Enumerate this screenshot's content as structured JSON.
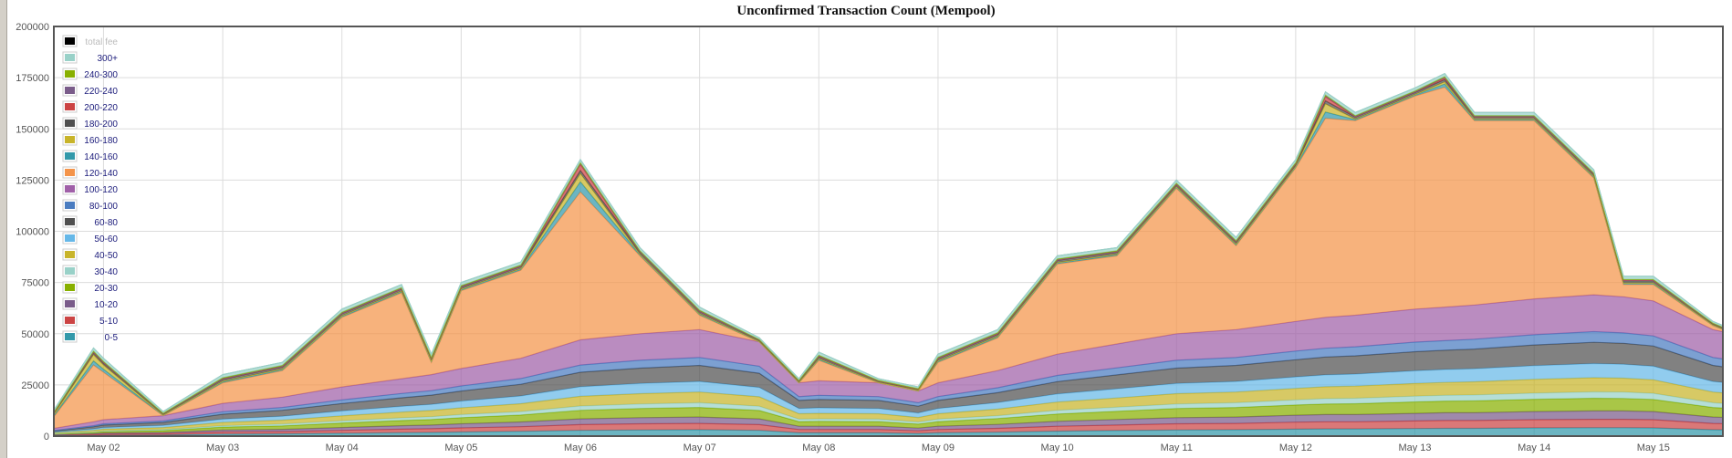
{
  "chart_data": {
    "type": "area",
    "stacked": true,
    "title": "Unconfirmed Transaction Count (Mempool)",
    "xlabel": "",
    "ylabel": "",
    "ylim": [
      0,
      200000
    ],
    "yticks": [
      0,
      25000,
      50000,
      75000,
      100000,
      125000,
      150000,
      175000,
      200000
    ],
    "xlim": [
      "May 01 14:00",
      "May 15 14:00"
    ],
    "xtick_labels": [
      "May 02",
      "May 03",
      "May 04",
      "May 05",
      "May 06",
      "May 07",
      "May 08",
      "May 09",
      "May 10",
      "May 11",
      "May 12",
      "May 13",
      "May 14",
      "May 15"
    ],
    "grid": true,
    "legend_placement": "top-left",
    "x": [
      "May 01 12:00",
      "May 01 22:00",
      "May 02 00:00",
      "May 02 12:00",
      "May 03 00:00",
      "May 03 12:00",
      "May 04 00:00",
      "May 04 12:00",
      "May 04 18:00",
      "May 05 00:00",
      "May 05 12:00",
      "May 06 00:00",
      "May 06 12:00",
      "May 07 00:00",
      "May 07 12:00",
      "May 07 20:00",
      "May 08 00:00",
      "May 08 12:00",
      "May 08 20:00",
      "May 09 00:00",
      "May 09 12:00",
      "May 10 00:00",
      "May 10 12:00",
      "May 11 00:00",
      "May 11 12:00",
      "May 12 00:00",
      "May 12 06:00",
      "May 12 12:00",
      "May 13 00:00",
      "May 13 06:00",
      "May 13 12:00",
      "May 14 00:00",
      "May 14 12:00",
      "May 14 18:00",
      "May 15 00:00",
      "May 15 12:00",
      "May 15 16:00"
    ],
    "series": [
      {
        "name": "0-5",
        "color": "#3399aa",
        "values": [
          200,
          400,
          500,
          600,
          1000,
          1100,
          1400,
          1700,
          1800,
          2000,
          2300,
          2800,
          3000,
          3100,
          2800,
          1600,
          1600,
          1600,
          1300,
          1600,
          1900,
          2400,
          2700,
          3000,
          3100,
          3400,
          3500,
          3500,
          3700,
          3800,
          3800,
          4000,
          4100,
          4100,
          4000,
          3100,
          3000
        ]
      },
      {
        "name": "5-10",
        "color": "#cc4444",
        "values": [
          200,
          400,
          500,
          600,
          1000,
          1100,
          1400,
          1700,
          1800,
          2000,
          2300,
          2800,
          3000,
          3100,
          2800,
          1600,
          1600,
          1600,
          1300,
          1600,
          1900,
          2400,
          2700,
          3000,
          3100,
          3400,
          3500,
          3500,
          3700,
          3800,
          3800,
          4000,
          4100,
          4100,
          4000,
          3100,
          3000
        ]
      },
      {
        "name": "10-20",
        "color": "#7a5c8a",
        "values": [
          200,
          400,
          500,
          600,
          1000,
          1100,
          1400,
          1700,
          1800,
          2000,
          2300,
          2800,
          3000,
          3100,
          2800,
          1600,
          1600,
          1600,
          1300,
          1600,
          1900,
          2400,
          2700,
          3000,
          3100,
          3400,
          3500,
          3500,
          3700,
          3800,
          3800,
          4000,
          4100,
          4100,
          4000,
          3100,
          3000
        ]
      },
      {
        "name": "20-30",
        "color": "#88b000",
        "values": [
          300,
          600,
          700,
          900,
          1400,
          1700,
          2200,
          2500,
          2700,
          3000,
          3400,
          4200,
          4500,
          4700,
          4100,
          2300,
          2400,
          2300,
          2000,
          2300,
          2900,
          3600,
          4000,
          4500,
          4700,
          5000,
          5200,
          5300,
          5600,
          5700,
          5800,
          6000,
          6200,
          6100,
          5900,
          4700,
          4500
        ]
      },
      {
        "name": "30-40",
        "color": "#99d1c8",
        "values": [
          100,
          300,
          400,
          500,
          700,
          900,
          1100,
          1300,
          1400,
          1500,
          1700,
          2100,
          2200,
          2300,
          2100,
          1200,
          1200,
          1200,
          1000,
          1200,
          1400,
          1800,
          2000,
          2200,
          2300,
          2500,
          2600,
          2700,
          2800,
          2800,
          2900,
          3000,
          3100,
          3100,
          3000,
          2300,
          2200
        ]
      },
      {
        "name": "40-50",
        "color": "#c8b42a",
        "values": [
          300,
          700,
          800,
          1000,
          1600,
          1900,
          2400,
          2800,
          3000,
          3300,
          3800,
          4700,
          5000,
          5200,
          4600,
          2600,
          2700,
          2600,
          2200,
          2600,
          3200,
          4000,
          4500,
          5000,
          5200,
          5600,
          5800,
          5900,
          6200,
          6300,
          6400,
          6700,
          6900,
          6800,
          6600,
          5200,
          5000
        ]
      },
      {
        "name": "50-60",
        "color": "#66b8e8",
        "values": [
          300,
          700,
          800,
          1000,
          1600,
          1900,
          2400,
          2800,
          3000,
          3300,
          3800,
          4700,
          5000,
          5200,
          4600,
          2600,
          2700,
          2600,
          2200,
          2600,
          3200,
          4000,
          4500,
          5000,
          5200,
          5600,
          5800,
          5900,
          6200,
          6300,
          6400,
          6700,
          6900,
          6800,
          6600,
          5200,
          5000
        ]
      },
      {
        "name": "60-80",
        "color": "#505050",
        "values": [
          400,
          1100,
          1200,
          1500,
          2400,
          2900,
          3600,
          4200,
          4500,
          4900,
          5700,
          7100,
          7500,
          7800,
          6900,
          3900,
          4100,
          3900,
          3300,
          3900,
          4800,
          6000,
          6800,
          7500,
          7800,
          8400,
          8700,
          8900,
          9300,
          9400,
          9600,
          10100,
          10400,
          10200,
          9900,
          7800,
          7500
        ]
      },
      {
        "name": "80-100",
        "color": "#4a7cc0",
        "values": [
          200,
          500,
          600,
          700,
          1200,
          1400,
          1800,
          2100,
          2200,
          2500,
          2800,
          3500,
          3800,
          3900,
          3400,
          1900,
          2000,
          1900,
          1700,
          1900,
          2400,
          3000,
          3400,
          3800,
          3900,
          4200,
          4300,
          4400,
          4700,
          4700,
          4800,
          5000,
          5200,
          5100,
          4900,
          3900,
          3800
        ]
      },
      {
        "name": "100-120",
        "color": "#a060a8",
        "values": [
          800,
          1900,
          2000,
          2600,
          4100,
          5000,
          6300,
          7200,
          7800,
          8500,
          9900,
          12300,
          13000,
          13600,
          11900,
          6700,
          7100,
          6700,
          5700,
          6700,
          8400,
          10400,
          11700,
          13000,
          13600,
          14500,
          15100,
          15400,
          16100,
          16400,
          16700,
          17500,
          18000,
          17600,
          17100,
          13600,
          13000
        ]
      },
      {
        "name": "120-140",
        "color": "#f4944a",
        "values": [
          100,
          27700,
          23200,
          0,
          10000,
          13000,
          34000,
          42000,
          6000,
          38000,
          43000,
          72200,
          38000,
          7000,
          0,
          0,
          10000,
          0,
          0,
          10000,
          16000,
          44000,
          43000,
          71000,
          41000,
          75000,
          97200,
          95000,
          104000,
          107400,
          90000,
          87000,
          57000,
          6000,
          8000,
          2000,
          0
        ]
      },
      {
        "name": "140-160",
        "color": "#3399aa",
        "values": [
          200,
          2000,
          1500,
          200,
          500,
          500,
          500,
          500,
          500,
          500,
          500,
          5000,
          500,
          500,
          200,
          200,
          500,
          200,
          200,
          500,
          500,
          500,
          500,
          500,
          500,
          500,
          3000,
          500,
          500,
          1500,
          500,
          500,
          500,
          500,
          500,
          200,
          200
        ]
      },
      {
        "name": "160-180",
        "color": "#c8b42a",
        "values": [
          100,
          3000,
          2000,
          100,
          300,
          300,
          300,
          300,
          300,
          300,
          300,
          4000,
          300,
          300,
          100,
          100,
          300,
          100,
          100,
          300,
          300,
          300,
          300,
          300,
          300,
          300,
          4000,
          300,
          300,
          1000,
          300,
          300,
          300,
          300,
          300,
          100,
          100
        ]
      },
      {
        "name": "180-200",
        "color": "#505050",
        "values": [
          500,
          1000,
          1000,
          600,
          1000,
          1000,
          1000,
          1000,
          1000,
          1000,
          1000,
          1500,
          1000,
          1000,
          600,
          600,
          1000,
          600,
          600,
          1000,
          1000,
          1000,
          1000,
          1000,
          1000,
          1000,
          1500,
          1000,
          1000,
          1200,
          1000,
          1000,
          1000,
          1000,
          1000,
          600,
          600
        ]
      },
      {
        "name": "200-220",
        "color": "#cc4444",
        "values": [
          100,
          300,
          300,
          100,
          200,
          200,
          200,
          200,
          200,
          200,
          200,
          3000,
          200,
          200,
          100,
          100,
          200,
          100,
          100,
          200,
          200,
          200,
          200,
          200,
          200,
          200,
          2000,
          200,
          200,
          800,
          200,
          200,
          200,
          200,
          200,
          100,
          100
        ]
      },
      {
        "name": "220-240",
        "color": "#7a5c8a",
        "values": [
          100,
          200,
          200,
          100,
          200,
          200,
          200,
          200,
          200,
          200,
          200,
          500,
          200,
          200,
          100,
          100,
          200,
          100,
          100,
          200,
          200,
          200,
          200,
          200,
          200,
          200,
          500,
          200,
          200,
          300,
          200,
          200,
          200,
          200,
          200,
          100,
          100
        ]
      },
      {
        "name": "240-300",
        "color": "#88b000",
        "values": [
          100,
          300,
          300,
          100,
          300,
          300,
          300,
          300,
          300,
          300,
          300,
          300,
          300,
          300,
          100,
          100,
          300,
          100,
          100,
          300,
          300,
          300,
          300,
          300,
          300,
          300,
          300,
          300,
          300,
          300,
          300,
          300,
          300,
          300,
          300,
          100,
          100
        ]
      },
      {
        "name": "300+",
        "color": "#99d1c8",
        "values": [
          800,
          1500,
          1500,
          800,
          1500,
          1500,
          1500,
          1500,
          1500,
          1500,
          1500,
          1500,
          1500,
          1500,
          800,
          800,
          1500,
          800,
          800,
          1500,
          1500,
          1500,
          1500,
          1500,
          1500,
          1500,
          1500,
          1500,
          1500,
          1500,
          1500,
          1500,
          1500,
          1500,
          1500,
          800,
          800
        ]
      }
    ],
    "legend": [
      {
        "label": "total fee",
        "color": "#000000",
        "disabled": true
      },
      {
        "label": "300+",
        "color": "#99d1c8"
      },
      {
        "label": "240-300",
        "color": "#88b000"
      },
      {
        "label": "220-240",
        "color": "#7a5c8a"
      },
      {
        "label": "200-220",
        "color": "#cc4444"
      },
      {
        "label": "180-200",
        "color": "#505050"
      },
      {
        "label": "160-180",
        "color": "#c8b42a"
      },
      {
        "label": "140-160",
        "color": "#3399aa"
      },
      {
        "label": "120-140",
        "color": "#f4944a"
      },
      {
        "label": "100-120",
        "color": "#a060a8"
      },
      {
        "label": "80-100",
        "color": "#4a7cc0"
      },
      {
        "label": "60-80",
        "color": "#505050"
      },
      {
        "label": "50-60",
        "color": "#66b8e8"
      },
      {
        "label": "40-50",
        "color": "#c8b42a"
      },
      {
        "label": "30-40",
        "color": "#99d1c8"
      },
      {
        "label": "20-30",
        "color": "#88b000"
      },
      {
        "label": "10-20",
        "color": "#7a5c8a"
      },
      {
        "label": "5-10",
        "color": "#cc4444"
      },
      {
        "label": "0-5",
        "color": "#3399aa"
      }
    ]
  }
}
